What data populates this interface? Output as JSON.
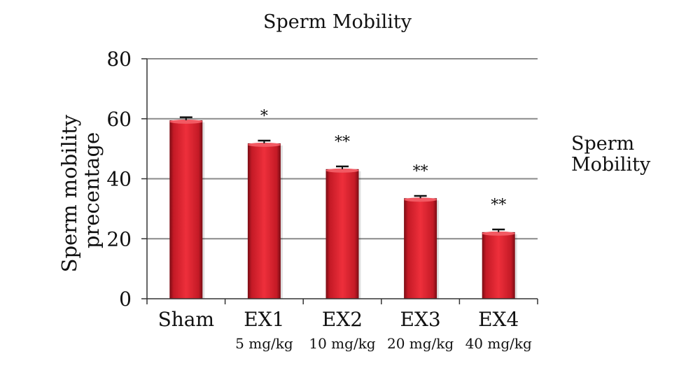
{
  "chart_data": {
    "type": "bar",
    "title": "Sperm Mobility",
    "ylabel": [
      "Sperm mobility",
      "precentage"
    ],
    "xlabel": "",
    "categories": [
      "Sham",
      "EX1",
      "EX2",
      "EX3",
      "EX4"
    ],
    "category_sublabels": [
      "",
      "5 mg/kg",
      "10 mg/kg",
      "20 mg/kg",
      "40 mg/kg"
    ],
    "yticks": [
      "0",
      "20",
      "40",
      "60",
      "80"
    ],
    "ylim": [
      0,
      80
    ],
    "grid": true,
    "legend_position": "right",
    "series": [
      {
        "name": "Sperm Mobility",
        "values": [
          59.5,
          51.8,
          43.2,
          33.5,
          22.2
        ],
        "errors": [
          1.0,
          0.9,
          0.9,
          0.8,
          0.9
        ]
      }
    ],
    "annotations": [
      "",
      "*",
      "**",
      "**",
      "**"
    ],
    "legend": [
      "Sperm",
      "Mobility"
    ],
    "bar_color": "#d8202e"
  }
}
